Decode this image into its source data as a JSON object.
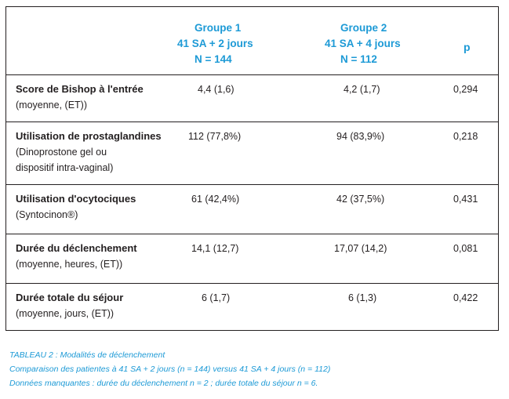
{
  "header": {
    "group1": {
      "title": "Groupe 1",
      "term": "41 SA + 2 jours",
      "n": "N = 144"
    },
    "group2": {
      "title": "Groupe 2",
      "term": "41 SA + 4 jours",
      "n": "N = 112"
    },
    "p": "p"
  },
  "rows": [
    {
      "label": "Score de Bishop à l'entrée",
      "sub1": "(moyenne, (ET))",
      "sub2": "",
      "g1": "4,4 (1,6)",
      "g2": "4,2 (1,7)",
      "p": "0,294"
    },
    {
      "label": "Utilisation de prostaglandines",
      "sub1": "(Dinoprostone gel ou",
      "sub2": "dispositif intra-vaginal)",
      "g1": "112 (77,8%)",
      "g2": "94 (83,9%)",
      "p": "0,218"
    },
    {
      "label": "Utilisation d'ocytociques",
      "sub1": "(Syntocinon®)",
      "sub2": "",
      "g1": "61 (42,4%)",
      "g2": "42 (37,5%)",
      "p": "0,431"
    },
    {
      "label": "Durée du déclenchement",
      "sub1": "(moyenne, heures, (ET))",
      "sub2": "",
      "g1": "14,1 (12,7)",
      "g2": "17,07 (14,2)",
      "p": "0,081"
    },
    {
      "label": "Durée totale du séjour",
      "sub1": "(moyenne, jours, (ET))",
      "sub2": "",
      "g1": "6 (1,7)",
      "g2": "6 (1,3)",
      "p": "0,422"
    }
  ],
  "caption": {
    "line1": "TABLEAU 2 : Modalités de déclenchement",
    "line2": "Comparaison des patientes à 41 SA + 2 jours (n = 144) versus 41 SA + 4 jours (n = 112)",
    "line3": "Données manquantes : durée du déclenchement n = 2 ; durée totale du séjour n = 6."
  },
  "colors": {
    "accent": "#1d9ad6",
    "text": "#231f20",
    "border": "#231f20"
  }
}
